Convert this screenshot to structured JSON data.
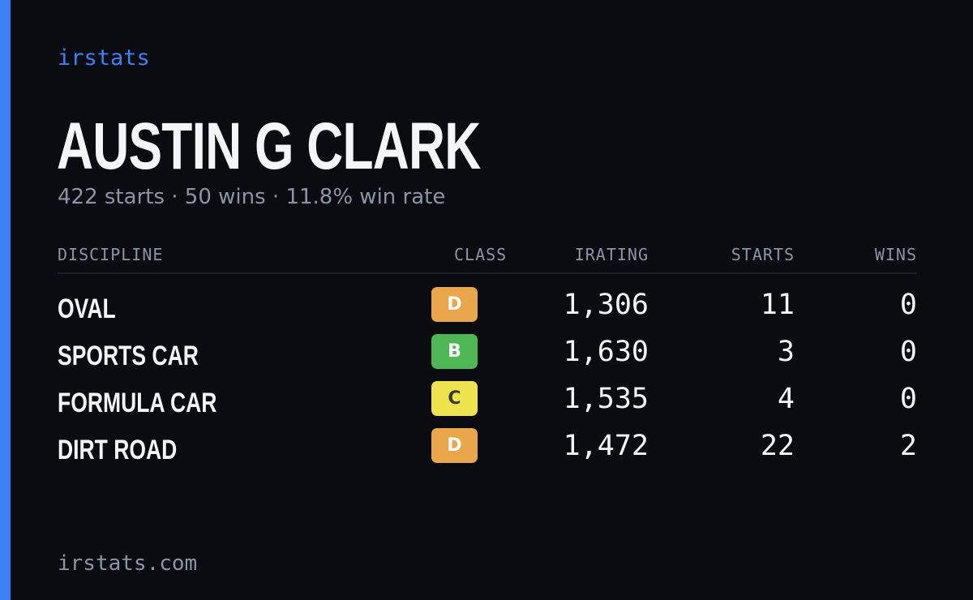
{
  "brand": "irstats",
  "player": {
    "name": "AUSTIN G CLARK",
    "summary": "422 starts · 50 wins · 11.8% win rate"
  },
  "table": {
    "headers": {
      "discipline": "DISCIPLINE",
      "class": "CLASS",
      "irating": "IRATING",
      "starts": "STARTS",
      "wins": "WINS"
    },
    "rows": [
      {
        "discipline": "OVAL",
        "class": "D",
        "class_color": "#e9a64a",
        "class_text_color": "#fdfdfd",
        "irating": "1,306",
        "starts": "11",
        "wins": "0"
      },
      {
        "discipline": "SPORTS CAR",
        "class": "B",
        "class_color": "#4fb655",
        "class_text_color": "#fdfdfd",
        "irating": "1,630",
        "starts": "3",
        "wins": "0"
      },
      {
        "discipline": "FORMULA CAR",
        "class": "C",
        "class_color": "#ece34e",
        "class_text_color": "#3a3a2a",
        "irating": "1,535",
        "starts": "4",
        "wins": "0"
      },
      {
        "discipline": "DIRT ROAD",
        "class": "D",
        "class_color": "#e9a64a",
        "class_text_color": "#fdfdfd",
        "irating": "1,472",
        "starts": "22",
        "wins": "2"
      }
    ]
  },
  "footer": {
    "url": "irstats.com"
  },
  "colors": {
    "background": "#0a0c12",
    "accent": "#3b82f6",
    "muted_text": "#8d94a6",
    "primary_text": "#f4f5f8"
  }
}
